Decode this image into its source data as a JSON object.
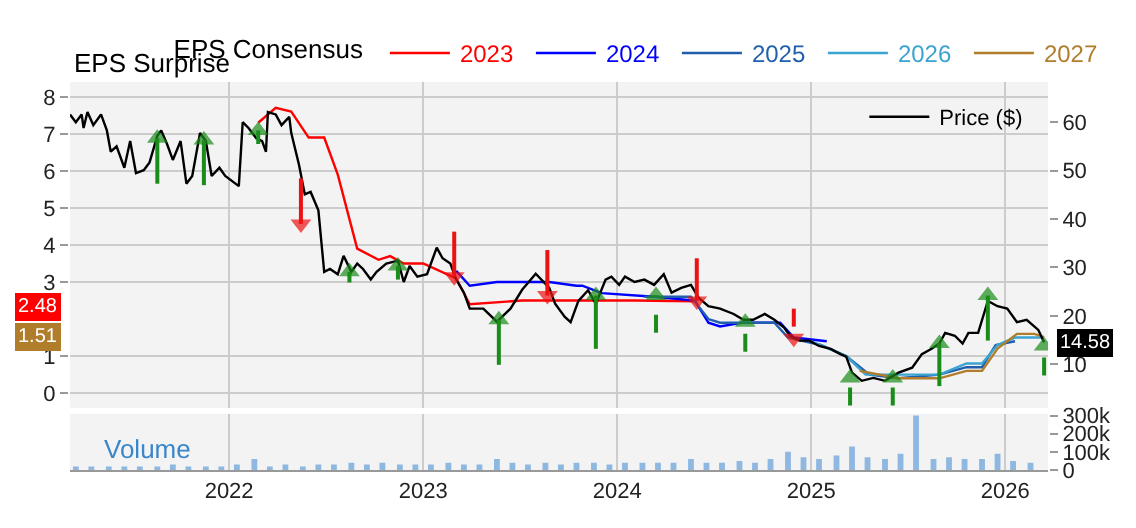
{
  "chart_data": {
    "type": "line",
    "xlim": [
      2021.18,
      2026.22
    ],
    "xticks": [
      2022,
      2023,
      2024,
      2025,
      2026
    ],
    "ylim": [
      -0.4,
      8.4
    ],
    "yticks": [
      0,
      1,
      3,
      4,
      5,
      6,
      7,
      8
    ],
    "y2lim": [
      1,
      68.3
    ],
    "y2ticks": [
      10,
      20,
      30,
      40,
      50,
      60
    ],
    "y3lim": [
      0,
      310000
    ],
    "y3ticks": [
      0,
      {
        "value": 100000,
        "label": "100k"
      },
      {
        "value": 200000,
        "label": "200k"
      },
      {
        "value": 300000,
        "label": "300k"
      }
    ],
    "grid": true,
    "legend": "top right",
    "legend_title": "EPS Consensus",
    "annotations": [
      "EPS Surprise",
      "Volume",
      "2.48",
      "1.51",
      "14.58"
    ],
    "series": [
      {
        "type": "bar",
        "axis": "y3",
        "color": "#8fb8e0",
        "x": [
          2021.21,
          2021.29,
          2021.38,
          2021.46,
          2021.54,
          2021.63,
          2021.71,
          2021.79,
          2021.88,
          2021.96,
          2022.04,
          2022.13,
          2022.21,
          2022.29,
          2022.38,
          2022.46,
          2022.54,
          2022.63,
          2022.71,
          2022.79,
          2022.88,
          2022.96,
          2023.04,
          2023.13,
          2023.21,
          2023.29,
          2023.38,
          2023.46,
          2023.54,
          2023.63,
          2023.71,
          2023.79,
          2023.88,
          2023.96,
          2024.04,
          2024.13,
          2024.21,
          2024.29,
          2024.38,
          2024.46,
          2024.54,
          2024.63,
          2024.71,
          2024.79,
          2024.88,
          2024.96,
          2025.04,
          2025.13,
          2025.21,
          2025.29,
          2025.38,
          2025.46,
          2025.54,
          2025.63,
          2025.71,
          2025.79,
          2025.88,
          2025.96,
          2026.04,
          2026.13
        ],
        "values": [
          20000,
          20000,
          20000,
          20000,
          20000,
          20000,
          30000,
          20000,
          20000,
          20000,
          30000,
          60000,
          20000,
          30000,
          20000,
          30000,
          30000,
          40000,
          30000,
          40000,
          30000,
          30000,
          30000,
          40000,
          30000,
          30000,
          60000,
          40000,
          30000,
          40000,
          30000,
          40000,
          40000,
          30000,
          40000,
          40000,
          40000,
          40000,
          60000,
          40000,
          40000,
          50000,
          40000,
          60000,
          100000,
          70000,
          60000,
          80000,
          130000,
          70000,
          60000,
          90000,
          300000,
          60000,
          70000,
          60000,
          60000,
          90000,
          50000,
          40000
        ]
      },
      {
        "name": "2023",
        "color": "#ff0000",
        "x": [
          2022.15,
          2022.24,
          2022.32,
          2022.41,
          2022.49,
          2022.56,
          2022.66,
          2022.77,
          2022.83,
          2022.9,
          2023.0,
          2023.17,
          2023.24,
          2023.51,
          2023.79,
          2024.09,
          2024.4
        ],
        "values": [
          7.3,
          7.7,
          7.6,
          6.9,
          6.9,
          5.9,
          3.9,
          3.6,
          3.7,
          3.5,
          3.5,
          3.1,
          2.4,
          2.5,
          2.5,
          2.5,
          2.48
        ]
      },
      {
        "name": "2024",
        "color": "#0000ff",
        "x": [
          2023.17,
          2023.24,
          2023.38,
          2023.65,
          2023.79,
          2023.82,
          2023.92,
          2024.19,
          2024.4,
          2024.47,
          2024.53,
          2024.64,
          2024.84,
          2024.91,
          2025.08
        ],
        "values": [
          3.3,
          2.9,
          3.0,
          3.0,
          2.9,
          2.9,
          2.7,
          2.6,
          2.5,
          1.9,
          1.8,
          1.9,
          1.9,
          1.5,
          1.4
        ]
      },
      {
        "name": "2025",
        "color": "#1f5fad",
        "x": [
          2024.14,
          2024.38,
          2024.47,
          2024.53,
          2024.81,
          2024.88,
          2025.05,
          2025.18,
          2025.3,
          2025.45,
          2025.66,
          2025.8,
          2025.88,
          2025.95,
          2026.05
        ],
        "values": [
          2.6,
          2.6,
          2.0,
          1.9,
          1.9,
          1.5,
          1.3,
          1.0,
          0.5,
          0.4,
          0.5,
          0.7,
          0.7,
          1.3,
          1.4
        ]
      },
      {
        "name": "2026",
        "color": "#3ba3d0",
        "x": [
          2025.0,
          2025.18,
          2025.28,
          2025.45,
          2025.66,
          2025.8,
          2025.88,
          2025.96,
          2026.05,
          2026.2
        ],
        "values": [
          1.4,
          1.0,
          0.5,
          0.5,
          0.5,
          0.8,
          0.8,
          1.3,
          1.5,
          1.5
        ]
      },
      {
        "name": "2027",
        "color": "#b07d2b",
        "x": [
          2025.25,
          2025.45,
          2025.66,
          2025.8,
          2025.88,
          2025.96,
          2026.06,
          2026.15,
          2026.2
        ],
        "values": [
          0.6,
          0.4,
          0.4,
          0.6,
          0.6,
          1.2,
          1.6,
          1.6,
          1.51
        ]
      },
      {
        "name": "Price ($)",
        "axis": "y2",
        "color": "#000000",
        "x": [
          2021.18,
          2021.21,
          2021.24,
          2021.25,
          2021.27,
          2021.3,
          2021.34,
          2021.37,
          2021.39,
          2021.42,
          2021.46,
          2021.49,
          2021.52,
          2021.56,
          2021.59,
          2021.63,
          2021.65,
          2021.68,
          2021.71,
          2021.75,
          2021.78,
          2021.81,
          2021.85,
          2021.88,
          2021.91,
          2021.95,
          2021.98,
          2022.05,
          2022.07,
          2022.1,
          2022.14,
          2022.17,
          2022.19,
          2022.2,
          2022.24,
          2022.27,
          2022.31,
          2022.32,
          2022.36,
          2022.39,
          2022.42,
          2022.46,
          2022.49,
          2022.52,
          2022.56,
          2022.59,
          2022.63,
          2022.66,
          2022.69,
          2022.73,
          2022.76,
          2022.81,
          2022.87,
          2022.9,
          2022.93,
          2022.97,
          2023.02,
          2023.07,
          2023.1,
          2023.14,
          2023.17,
          2023.21,
          2023.24,
          2023.31,
          2023.38,
          2023.45,
          2023.51,
          2023.58,
          2023.65,
          2023.68,
          2023.73,
          2023.76,
          2023.8,
          2023.85,
          2023.89,
          2023.94,
          2023.97,
          2024.01,
          2024.04,
          2024.09,
          2024.14,
          2024.19,
          2024.24,
          2024.28,
          2024.33,
          2024.38,
          2024.42,
          2024.47,
          2024.53,
          2024.6,
          2024.65,
          2024.7,
          2024.76,
          2024.81,
          2024.86,
          2024.89,
          2024.94,
          2024.99,
          2025.04,
          2025.1,
          2025.15,
          2025.18,
          2025.21,
          2025.26,
          2025.32,
          2025.38,
          2025.45,
          2025.52,
          2025.57,
          2025.62,
          2025.66,
          2025.69,
          2025.74,
          2025.78,
          2025.81,
          2025.86,
          2025.91,
          2025.96,
          2026.01,
          2026.06,
          2026.11,
          2026.17,
          2026.2
        ],
        "values": [
          61.6,
          60.0,
          61.6,
          58.8,
          62.1,
          59.4,
          61.6,
          58.3,
          53.9,
          55.0,
          50.6,
          56.1,
          49.5,
          50.1,
          51.7,
          57.2,
          58.3,
          55.5,
          52.2,
          56.1,
          47.3,
          48.9,
          57.8,
          56.1,
          48.9,
          50.6,
          48.9,
          46.8,
          60.0,
          58.8,
          56.7,
          56.1,
          53.9,
          62.1,
          61.6,
          59.4,
          61.1,
          57.8,
          51.2,
          45.1,
          45.6,
          41.8,
          29.1,
          29.7,
          28.6,
          32.4,
          29.1,
          30.8,
          29.7,
          27.5,
          29.1,
          30.8,
          31.4,
          27.0,
          30.3,
          28.1,
          28.6,
          34.1,
          31.9,
          30.8,
          27.5,
          24.8,
          21.5,
          21.5,
          18.8,
          21.5,
          25.4,
          28.7,
          25.8,
          22.5,
          19.8,
          18.7,
          23.1,
          25.3,
          22.5,
          27.5,
          28.1,
          26.4,
          28.1,
          27.0,
          27.5,
          26.4,
          28.6,
          24.8,
          25.8,
          26.4,
          23.7,
          22.0,
          21.5,
          20.4,
          19.2,
          19.2,
          20.4,
          19.2,
          17.6,
          15.9,
          14.9,
          14.9,
          13.8,
          13.2,
          12.1,
          11.6,
          8.3,
          6.6,
          7.2,
          6.6,
          8.3,
          9.3,
          12.1,
          13.2,
          14.3,
          16.5,
          15.9,
          14.3,
          16.5,
          16.5,
          23.1,
          22.0,
          21.5,
          18.7,
          19.2,
          17.1,
          14.58
        ]
      },
      {
        "axis": "y2",
        "color": "#1a8c1a",
        "marker": "triangle",
        "line_style": "solid",
        "x": [
          2021.63,
          2021.63,
          null,
          2021.87,
          2021.87,
          null,
          2022.15,
          2022.15,
          null,
          2022.62,
          2022.62,
          null,
          2022.87,
          2022.87,
          null,
          2023.39,
          2023.39,
          null,
          2023.89,
          2023.89,
          null,
          2025.66,
          2025.66,
          null,
          2025.91,
          2025.91
        ],
        "values": [
          47.3,
          56.7,
          null,
          47.0,
          56.3,
          null,
          55.5,
          58.3,
          null,
          26.9,
          29.1,
          null,
          27.5,
          30.3,
          null,
          9.9,
          19.2,
          null,
          13.2,
          24.2,
          null,
          5.5,
          14.3,
          null,
          14.9,
          24.2
        ]
      },
      {
        "axis": "y2",
        "color": "#1a8c1a",
        "marker": "triangle",
        "line_style": "dashed",
        "x": [
          2024.2,
          2024.2,
          null,
          2024.66,
          2024.66,
          null,
          2025.2,
          2025.2,
          null,
          2025.42,
          2025.42,
          null,
          2026.2,
          2026.2
        ],
        "values": [
          16.5,
          24.2,
          null,
          12.6,
          18.7,
          null,
          1.5,
          7.2,
          null,
          1.5,
          7.2,
          null,
          7.7,
          13.8
        ]
      },
      {
        "axis": "y2",
        "color": "#ee1111",
        "marker": "triangle",
        "line_style": "solid",
        "x": [
          2022.37,
          2022.37,
          null,
          2023.16,
          2023.16,
          null,
          2023.64,
          2023.64,
          null,
          2024.41,
          2024.41
        ],
        "values": [
          48.4,
          39.0,
          null,
          37.4,
          28.1,
          null,
          33.6,
          24.2,
          null,
          31.9,
          23.1
        ]
      },
      {
        "axis": "y2",
        "color": "#ee1111",
        "marker": "triangle",
        "line_style": "dashed",
        "x": [
          2024.91,
          2024.91
        ],
        "values": [
          21.5,
          15.4
        ]
      }
    ]
  }
}
